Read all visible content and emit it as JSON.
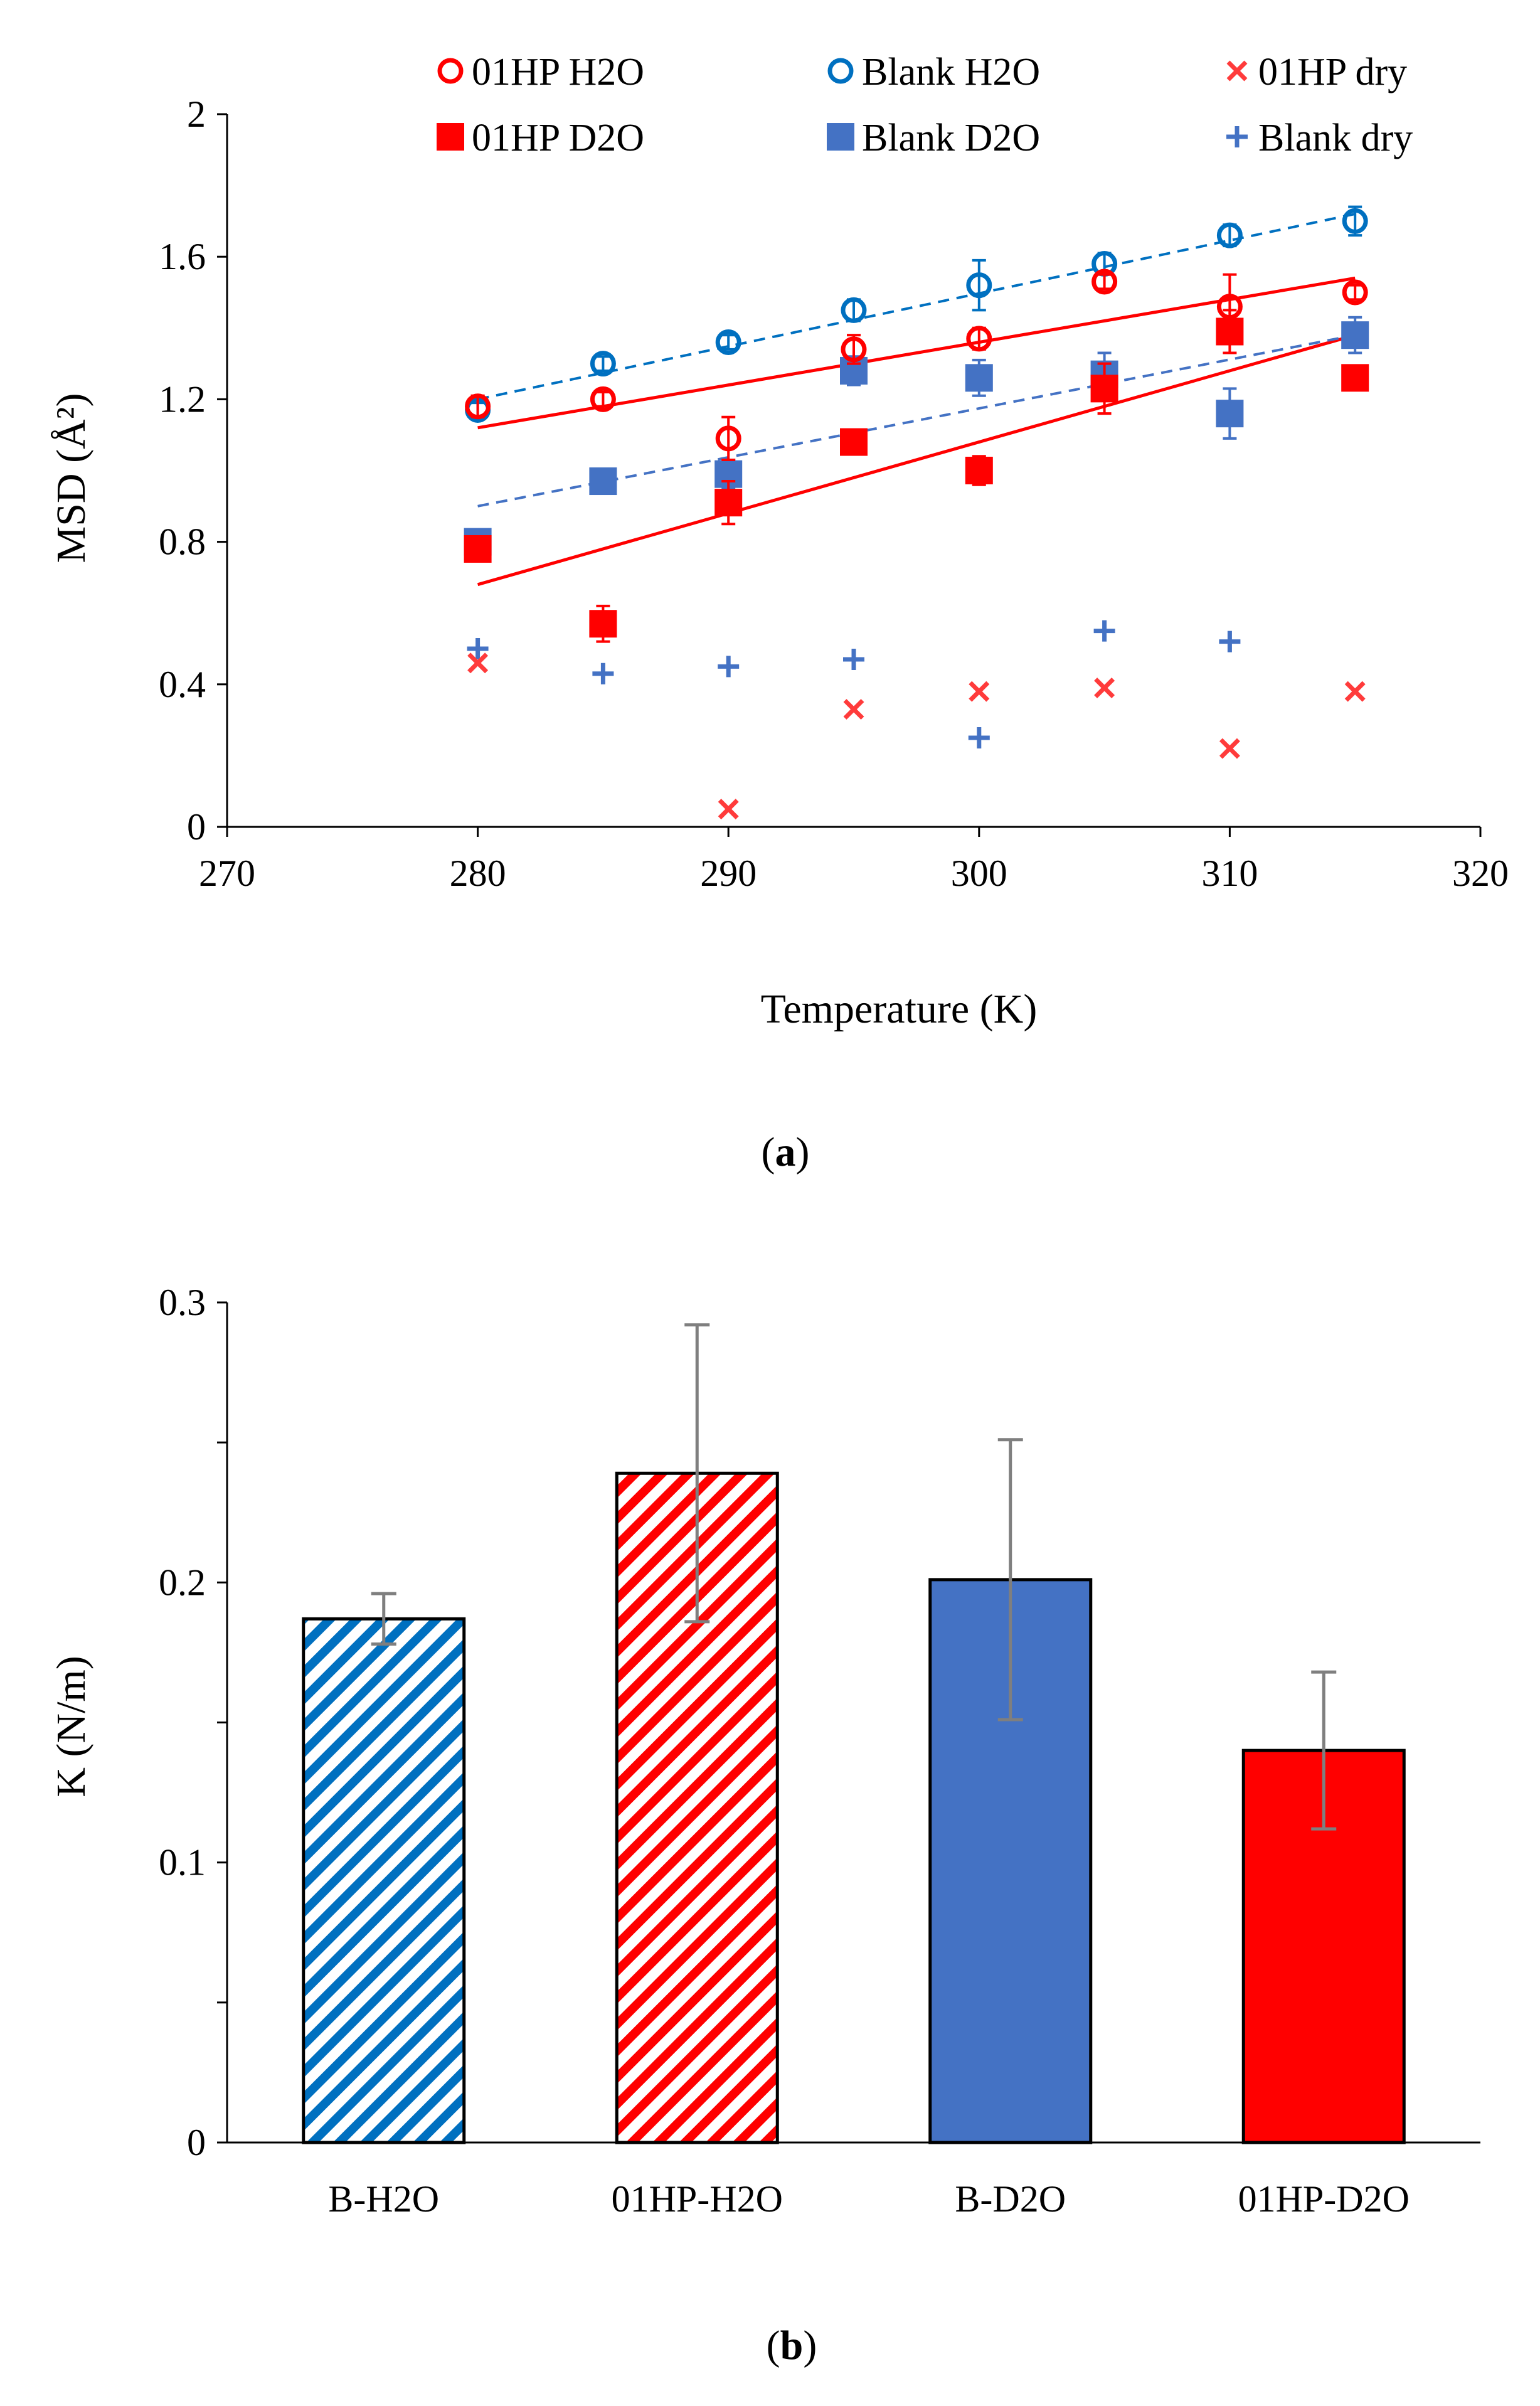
{
  "chart_data": [
    {
      "type": "scatter",
      "panel_label": "a",
      "xlabel": "Temperature (K)",
      "ylabel": "MSD (Å²)",
      "xlim": [
        270,
        320
      ],
      "ylim": [
        0,
        2
      ],
      "xticks": [
        270,
        280,
        290,
        300,
        310,
        320
      ],
      "yticks": [
        0,
        0.4,
        0.8,
        1.2,
        1.6,
        2
      ],
      "ytick_labels": [
        "0",
        "0.4",
        "0.8",
        "1.2",
        "1.6",
        "2"
      ],
      "grid": false,
      "legend_position": "top",
      "x": [
        280,
        285,
        290,
        295,
        300,
        305,
        310,
        315
      ],
      "series": [
        {
          "name": "01HP H2O",
          "color": "#ff0000",
          "marker": "open-circle",
          "values": [
            1.18,
            1.2,
            1.09,
            1.34,
            1.37,
            1.53,
            1.46,
            1.5
          ],
          "errors": [
            0.03,
            0.02,
            0.06,
            0.04,
            0.03,
            0.02,
            0.09,
            0.02
          ],
          "trend": [
            1.12,
            1.54
          ]
        },
        {
          "name": "Blank H2O",
          "color": "#0070c0",
          "marker": "open-circle",
          "values": [
            1.17,
            1.3,
            1.36,
            1.45,
            1.52,
            1.58,
            1.66,
            1.7
          ],
          "errors": [
            0.02,
            0.02,
            0.02,
            0.03,
            0.07,
            0.03,
            0.03,
            0.04
          ],
          "trend": [
            1.2,
            1.72
          ]
        },
        {
          "name": "01HP dry",
          "color": "#ff3b3b",
          "marker": "x",
          "values": [
            0.46,
            null,
            0.05,
            0.33,
            0.38,
            0.39,
            0.22,
            0.38
          ]
        },
        {
          "name": "01HP D2O",
          "color": "#ff0000",
          "marker": "filled-square",
          "values": [
            0.78,
            0.57,
            0.91,
            1.08,
            1.0,
            1.23,
            1.39,
            1.26
          ],
          "errors": [
            0.02,
            0.05,
            0.06,
            0.02,
            0.04,
            0.07,
            0.06,
            0.02
          ],
          "trend": [
            0.68,
            1.38
          ]
        },
        {
          "name": "Blank D2O",
          "color": "#4472c4",
          "marker": "filled-square",
          "values": [
            0.8,
            0.97,
            0.99,
            1.28,
            1.26,
            1.27,
            1.16,
            1.38
          ],
          "errors": [
            0.02,
            0.03,
            0.04,
            0.04,
            0.05,
            0.06,
            0.07,
            0.05
          ],
          "trend": [
            0.9,
            1.38
          ]
        },
        {
          "name": "Blank dry",
          "color": "#4472c4",
          "marker": "plus",
          "values": [
            0.5,
            0.43,
            0.45,
            0.47,
            0.25,
            0.55,
            0.52,
            null
          ]
        }
      ]
    },
    {
      "type": "bar",
      "panel_label": "b",
      "xlabel": "",
      "ylabel": "K (N/m)",
      "ylim": [
        0,
        0.3
      ],
      "yticks": [
        0,
        0.1,
        0.2,
        0.3
      ],
      "ytick_labels": [
        "0",
        "0.1",
        "0.2",
        "0.3"
      ],
      "grid": false,
      "categories": [
        "B-H2O",
        "01HP-H2O",
        "B-D2O",
        "01HP-D2O"
      ],
      "values": [
        0.187,
        0.239,
        0.201,
        0.14
      ],
      "errors": [
        0.009,
        0.053,
        0.05,
        0.028
      ],
      "bar_colors": [
        "#0070c0",
        "#ff0000",
        "#4472c4",
        "#ff0000"
      ],
      "bar_fill": [
        "hatched",
        "hatched",
        "solid",
        "solid"
      ],
      "errorbar_color": "#7f7f7f"
    }
  ]
}
